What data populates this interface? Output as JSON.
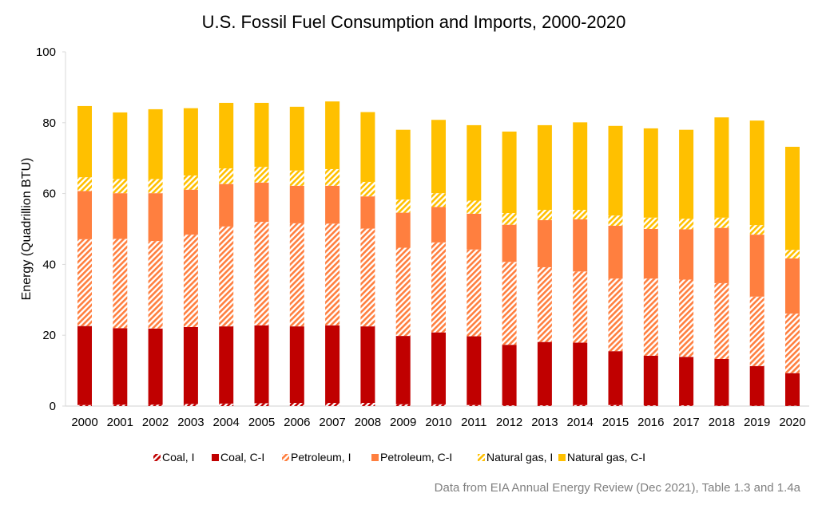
{
  "chart_data": {
    "type": "bar",
    "stacked": true,
    "title": "U.S. Fossil Fuel Consumption and Imports, 2000-2020",
    "xlabel": "",
    "ylabel": "Energy (Quadrillion BTU)",
    "ylim": [
      0,
      100
    ],
    "yticks": [
      0,
      20,
      40,
      60,
      80,
      100
    ],
    "grid": false,
    "legend_position": "bottom",
    "categories": [
      "2000",
      "2001",
      "2002",
      "2003",
      "2004",
      "2005",
      "2006",
      "2007",
      "2008",
      "2009",
      "2010",
      "2011",
      "2012",
      "2013",
      "2014",
      "2015",
      "2016",
      "2017",
      "2018",
      "2019",
      "2020"
    ],
    "series": [
      {
        "name": "Coal, I",
        "color": "#C00000",
        "pattern": "hatched",
        "values": [
          0.3,
          0.4,
          0.4,
          0.6,
          0.7,
          0.8,
          0.9,
          0.9,
          0.9,
          0.5,
          0.5,
          0.3,
          0.2,
          0.2,
          0.3,
          0.3,
          0.2,
          0.2,
          0.1,
          0.1,
          0.1
        ]
      },
      {
        "name": "Coal, C-I",
        "color": "#C00000",
        "pattern": "solid",
        "values": [
          22.3,
          21.6,
          21.5,
          21.7,
          21.8,
          22.0,
          21.6,
          21.9,
          21.6,
          19.3,
          20.3,
          19.4,
          17.1,
          17.9,
          17.6,
          15.2,
          14.0,
          13.7,
          13.2,
          11.2,
          9.2
        ]
      },
      {
        "name": "Petroleum, I",
        "color": "#FF7F3F",
        "pattern": "hatched",
        "values": [
          24.5,
          25.2,
          24.7,
          26.1,
          28.2,
          29.2,
          29.1,
          28.7,
          27.6,
          24.9,
          25.4,
          24.5,
          23.4,
          21.1,
          20.1,
          20.5,
          21.8,
          21.8,
          21.4,
          19.6,
          16.8
        ]
      },
      {
        "name": "Petroleum, C-I",
        "color": "#FF7F3F",
        "pattern": "solid",
        "values": [
          13.6,
          12.9,
          13.5,
          12.7,
          12.0,
          11.1,
          10.6,
          10.7,
          9.1,
          9.9,
          10.0,
          10.1,
          10.5,
          13.3,
          14.7,
          14.9,
          14.0,
          14.2,
          15.6,
          17.5,
          15.6
        ]
      },
      {
        "name": "Natural gas, I",
        "color": "#FFC000",
        "pattern": "hatched",
        "values": [
          3.9,
          4.0,
          4.0,
          4.0,
          4.4,
          4.4,
          4.3,
          4.7,
          4.1,
          3.7,
          3.9,
          3.7,
          3.3,
          2.9,
          2.7,
          2.9,
          3.2,
          3.0,
          2.9,
          2.7,
          2.4
        ]
      },
      {
        "name": "Natural gas, C-I",
        "color": "#FFC000",
        "pattern": "solid",
        "values": [
          20.1,
          18.8,
          19.7,
          19.0,
          18.5,
          18.1,
          18.0,
          19.1,
          19.7,
          19.7,
          20.7,
          21.3,
          23.0,
          23.9,
          24.7,
          25.3,
          25.2,
          25.1,
          28.3,
          29.5,
          29.1
        ]
      }
    ],
    "footnote": "Data from EIA Annual Energy Review (Dec 2021), Table 1.3 and 1.4a"
  }
}
